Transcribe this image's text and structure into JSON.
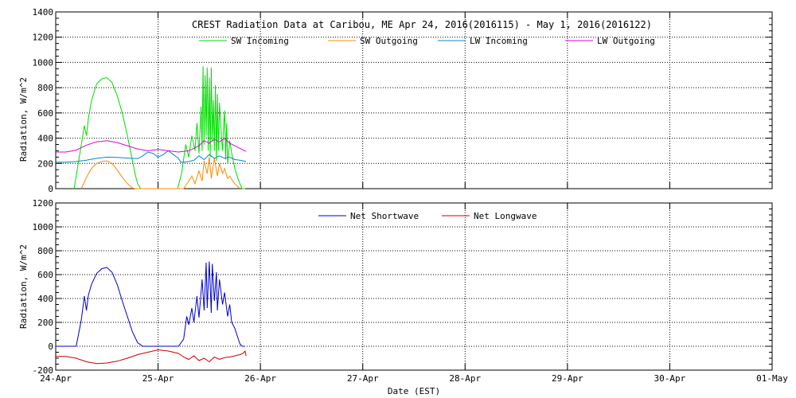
{
  "chart_data": [
    {
      "type": "line",
      "title": "CREST Radiation Data at Caribou, ME   Apr 24, 2016(2016115) - May  1, 2016(2016122)",
      "ylabel": "Radiation, W/m^2",
      "xlabel": "",
      "ylim": [
        0,
        1400
      ],
      "yticks": [
        0,
        200,
        400,
        600,
        800,
        1000,
        1200,
        1400
      ],
      "xlim": [
        0,
        7
      ],
      "grid": true,
      "legend": "top",
      "series": [
        {
          "name": "SW Incoming",
          "color": "#00dd00",
          "x": [
            0.18,
            0.24,
            0.28,
            0.3,
            0.32,
            0.35,
            0.4,
            0.45,
            0.5,
            0.55,
            0.6,
            0.65,
            0.7,
            0.75,
            0.78,
            0.8,
            0.83,
            1.19,
            1.23,
            1.27,
            1.3,
            1.33,
            1.36,
            1.38,
            1.4,
            1.42,
            1.43,
            1.44,
            1.45,
            1.46,
            1.47,
            1.48,
            1.49,
            1.5,
            1.51,
            1.52,
            1.53,
            1.54,
            1.55,
            1.56,
            1.57,
            1.58,
            1.59,
            1.6,
            1.62,
            1.63,
            1.64,
            1.65,
            1.66,
            1.67,
            1.68,
            1.7,
            1.72,
            1.75,
            1.78,
            1.8,
            1.82,
            1.85
          ],
          "y": [
            0,
            300,
            500,
            420,
            560,
            700,
            830,
            870,
            880,
            840,
            740,
            600,
            420,
            220,
            100,
            40,
            0,
            0,
            120,
            350,
            250,
            420,
            300,
            520,
            280,
            650,
            300,
            970,
            350,
            900,
            420,
            960,
            300,
            880,
            250,
            960,
            380,
            700,
            300,
            820,
            220,
            750,
            300,
            680,
            400,
            300,
            500,
            620,
            230,
            520,
            200,
            380,
            280,
            160,
            80,
            40,
            0,
            0
          ]
        },
        {
          "name": "SW Outgoing",
          "color": "#ff8800",
          "x": [
            0.25,
            0.3,
            0.35,
            0.4,
            0.45,
            0.5,
            0.55,
            0.6,
            0.65,
            0.7,
            0.75,
            0.78,
            1.25,
            1.3,
            1.33,
            1.36,
            1.4,
            1.43,
            1.45,
            1.48,
            1.5,
            1.52,
            1.55,
            1.58,
            1.6,
            1.63,
            1.65,
            1.68,
            1.7,
            1.73,
            1.75,
            1.78,
            1.8
          ],
          "y": [
            0,
            90,
            160,
            200,
            215,
            220,
            200,
            150,
            90,
            40,
            5,
            0,
            0,
            60,
            100,
            40,
            140,
            60,
            220,
            120,
            250,
            80,
            240,
            100,
            200,
            120,
            160,
            80,
            100,
            60,
            40,
            15,
            0
          ]
        },
        {
          "name": "LW Incoming",
          "color": "#0088cc",
          "x": [
            0.0,
            0.1,
            0.2,
            0.3,
            0.4,
            0.5,
            0.6,
            0.7,
            0.8,
            0.85,
            0.9,
            0.95,
            1.0,
            1.05,
            1.1,
            1.15,
            1.2,
            1.22,
            1.25,
            1.3,
            1.35,
            1.4,
            1.45,
            1.5,
            1.55,
            1.6,
            1.65,
            1.7,
            1.75,
            1.8,
            1.83,
            1.86
          ],
          "y": [
            210,
            210,
            215,
            225,
            240,
            250,
            248,
            242,
            238,
            260,
            290,
            280,
            250,
            270,
            300,
            270,
            240,
            210,
            210,
            215,
            225,
            260,
            230,
            270,
            240,
            260,
            240,
            250,
            230,
            225,
            220,
            215
          ]
        },
        {
          "name": "LW Outgoing",
          "color": "#dd00dd",
          "x": [
            0.0,
            0.1,
            0.2,
            0.3,
            0.4,
            0.5,
            0.6,
            0.7,
            0.8,
            0.9,
            1.0,
            1.1,
            1.2,
            1.3,
            1.4,
            1.45,
            1.5,
            1.55,
            1.6,
            1.65,
            1.7,
            1.75,
            1.8,
            1.86
          ],
          "y": [
            290,
            290,
            305,
            345,
            370,
            380,
            365,
            340,
            315,
            300,
            310,
            300,
            290,
            300,
            340,
            380,
            360,
            390,
            370,
            400,
            360,
            340,
            320,
            295
          ]
        }
      ]
    },
    {
      "type": "line",
      "title": "",
      "ylabel": "Radiation, W/m^2",
      "xlabel": "Date (EST)",
      "ylim": [
        -200,
        1200
      ],
      "yticks": [
        -200,
        0,
        200,
        400,
        600,
        800,
        1000,
        1200
      ],
      "xlim": [
        0,
        7
      ],
      "xticks": [
        "24-Apr",
        "25-Apr",
        "26-Apr",
        "27-Apr",
        "28-Apr",
        "29-Apr",
        "30-Apr",
        "01-May"
      ],
      "grid": true,
      "legend": "top",
      "series": [
        {
          "name": "Net Shortwave",
          "color": "#0000cc",
          "x": [
            0.0,
            0.1,
            0.2,
            0.25,
            0.28,
            0.3,
            0.32,
            0.35,
            0.4,
            0.45,
            0.5,
            0.55,
            0.6,
            0.65,
            0.7,
            0.75,
            0.8,
            0.85,
            0.9,
            1.0,
            1.1,
            1.2,
            1.25,
            1.28,
            1.3,
            1.33,
            1.35,
            1.38,
            1.4,
            1.43,
            1.45,
            1.47,
            1.48,
            1.5,
            1.52,
            1.53,
            1.55,
            1.57,
            1.58,
            1.6,
            1.63,
            1.65,
            1.68,
            1.7,
            1.72,
            1.75,
            1.78,
            1.8,
            1.82,
            1.85
          ],
          "y": [
            0,
            0,
            0,
            220,
            420,
            300,
            430,
            520,
            610,
            650,
            660,
            620,
            520,
            380,
            250,
            120,
            30,
            0,
            0,
            0,
            0,
            0,
            60,
            250,
            180,
            320,
            200,
            420,
            240,
            560,
            300,
            700,
            320,
            710,
            280,
            690,
            380,
            620,
            300,
            560,
            350,
            450,
            250,
            350,
            200,
            150,
            70,
            20,
            0,
            0
          ]
        },
        {
          "name": "Net Longwave",
          "color": "#cc0000",
          "x": [
            0.0,
            0.1,
            0.2,
            0.3,
            0.4,
            0.5,
            0.6,
            0.7,
            0.8,
            0.9,
            1.0,
            1.1,
            1.2,
            1.25,
            1.3,
            1.35,
            1.4,
            1.45,
            1.5,
            1.55,
            1.6,
            1.65,
            1.7,
            1.75,
            1.8,
            1.83,
            1.85,
            1.86
          ],
          "y": [
            -85,
            -85,
            -100,
            -130,
            -145,
            -140,
            -125,
            -100,
            -70,
            -50,
            -30,
            -40,
            -60,
            -90,
            -110,
            -80,
            -120,
            -100,
            -130,
            -90,
            -110,
            -95,
            -90,
            -80,
            -70,
            -60,
            -40,
            -80
          ]
        }
      ]
    }
  ]
}
